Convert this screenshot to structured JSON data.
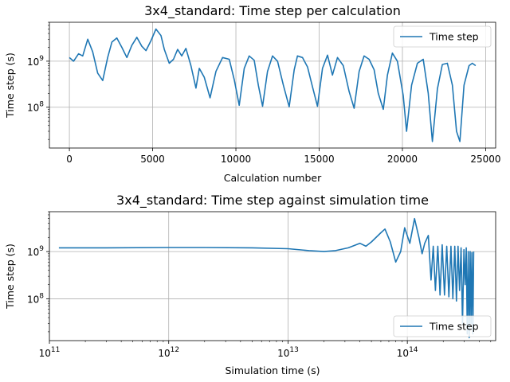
{
  "chart_data": [
    {
      "type": "line",
      "title": "3x4_standard: Time step per calculation",
      "xlabel": "Calculation number",
      "ylabel": "Time step (s)",
      "xscale": "linear",
      "yscale": "log",
      "xlim": [
        -1200,
        25600
      ],
      "ylim": [
        13000000.0,
        7000000000.0
      ],
      "xticks": [
        0,
        5000,
        10000,
        15000,
        20000,
        25000
      ],
      "xtick_labels": [
        "0",
        "5000",
        "10000",
        "15000",
        "20000",
        "25000"
      ],
      "ytick_labels": [
        {
          "base": "10",
          "exp": "8",
          "value": 100000000.0
        },
        {
          "base": "10",
          "exp": "9",
          "value": 1000000000.0
        }
      ],
      "grid": true,
      "legend": "top-right",
      "color": "#1f77b4",
      "series": [
        {
          "name": "Time step",
          "x": [
            0,
            250,
            550,
            800,
            1100,
            1400,
            1700,
            2000,
            2300,
            2550,
            2850,
            3150,
            3450,
            3750,
            4050,
            4350,
            4600,
            4900,
            5200,
            5500,
            5700,
            6000,
            6250,
            6500,
            6750,
            7000,
            7300,
            7600,
            7800,
            8100,
            8450,
            8800,
            9200,
            9600,
            9900,
            10200,
            10500,
            10800,
            11100,
            11350,
            11600,
            11900,
            12200,
            12500,
            12850,
            13200,
            13500,
            13700,
            14000,
            14300,
            14600,
            14900,
            15200,
            15500,
            15800,
            16100,
            16450,
            16800,
            17100,
            17400,
            17700,
            18000,
            18300,
            18550,
            18850,
            19100,
            19400,
            19700,
            20050,
            20250,
            20550,
            20900,
            21250,
            21550,
            21800,
            22100,
            22400,
            22700,
            23000,
            23250,
            23450,
            23700,
            24000,
            24200,
            24400
          ],
          "y": [
            1200000000.0,
            1000000000.0,
            1450000000.0,
            1300000000.0,
            3000000000.0,
            1600000000.0,
            550000000.0,
            380000000.0,
            1200000000.0,
            2600000000.0,
            3200000000.0,
            2000000000.0,
            1200000000.0,
            2200000000.0,
            3300000000.0,
            2100000000.0,
            1700000000.0,
            2800000000.0,
            5000000000.0,
            3600000000.0,
            1800000000.0,
            900000000.0,
            1100000000.0,
            1800000000.0,
            1300000000.0,
            1900000000.0,
            800000000.0,
            260000000.0,
            700000000.0,
            450000000.0,
            160000000.0,
            600000000.0,
            1200000000.0,
            1100000000.0,
            400000000.0,
            110000000.0,
            700000000.0,
            1300000000.0,
            1050000000.0,
            300000000.0,
            105000000.0,
            600000000.0,
            1300000000.0,
            1000000000.0,
            300000000.0,
            102000000.0,
            650000000.0,
            1300000000.0,
            1200000000.0,
            750000000.0,
            280000000.0,
            105000000.0,
            700000000.0,
            1350000000.0,
            500000000.0,
            1200000000.0,
            800000000.0,
            220000000.0,
            95000000.0,
            600000000.0,
            1300000000.0,
            1100000000.0,
            650000000.0,
            200000000.0,
            90000000.0,
            500000000.0,
            1500000000.0,
            1000000000.0,
            180000000.0,
            30000000.0,
            300000000.0,
            900000000.0,
            1100000000.0,
            200000000.0,
            18000000.0,
            250000000.0,
            850000000.0,
            900000000.0,
            300000000.0,
            30000000.0,
            18000000.0,
            300000000.0,
            800000000.0,
            900000000.0,
            800000000.0
          ]
        }
      ]
    },
    {
      "type": "line",
      "title": "3x4_standard: Time step against simulation time",
      "xlabel": "Simulation time (s)",
      "ylabel": "Time step (s)",
      "xscale": "log",
      "yscale": "log",
      "xlim": [
        100000000000.0,
        550000000000000.0
      ],
      "ylim": [
        13000000.0,
        7000000000.0
      ],
      "xtick_labels": [
        {
          "base": "10",
          "exp": "11",
          "value": 100000000000.0
        },
        {
          "base": "10",
          "exp": "12",
          "value": 1000000000000.0
        },
        {
          "base": "10",
          "exp": "13",
          "value": 10000000000000.0
        },
        {
          "base": "10",
          "exp": "14",
          "value": 100000000000000.0
        }
      ],
      "ytick_labels": [
        {
          "base": "10",
          "exp": "8",
          "value": 100000000.0
        },
        {
          "base": "10",
          "exp": "9",
          "value": 1000000000.0
        }
      ],
      "grid": true,
      "legend": "bottom-right",
      "color": "#1f77b4",
      "series": [
        {
          "name": "Time step",
          "x": [
            120000000000.0,
            300000000000.0,
            1000000000000.0,
            2000000000000.0,
            5000000000000.0,
            10000000000000.0,
            15000000000000.0,
            20000000000000.0,
            25000000000000.0,
            32000000000000.0,
            40000000000000.0,
            45000000000000.0,
            50000000000000.0,
            60000000000000.0,
            65000000000000.0,
            72000000000000.0,
            80000000000000.0,
            88000000000000.0,
            95000000000000.0,
            105000000000000.0,
            115000000000000.0,
            125000000000000.0,
            133000000000000.0,
            140000000000000.0,
            150000000000000.0,
            158000000000000.0,
            165000000000000.0,
            172000000000000.0,
            180000000000000.0,
            188000000000000.0,
            196000000000000.0,
            205000000000000.0,
            214000000000000.0,
            223000000000000.0,
            232000000000000.0,
            241000000000000.0,
            250000000000000.0,
            258000000000000.0,
            266000000000000.0,
            274000000000000.0,
            282000000000000.0,
            290000000000000.0,
            298000000000000.0,
            305000000000000.0,
            312000000000000.0,
            318000000000000.0,
            324000000000000.0,
            330000000000000.0,
            336000000000000.0,
            342000000000000.0,
            348000000000000.0,
            354000000000000.0,
            360000000000000.0
          ],
          "y": [
            1200000000.0,
            1200000000.0,
            1220000000.0,
            1220000000.0,
            1200000000.0,
            1150000000.0,
            1050000000.0,
            1000000000.0,
            1050000000.0,
            1200000000.0,
            1500000000.0,
            1300000000.0,
            1600000000.0,
            2500000000.0,
            3000000000.0,
            1600000000.0,
            600000000.0,
            1000000000.0,
            3200000000.0,
            1500000000.0,
            5000000000.0,
            2000000000.0,
            900000000.0,
            1500000000.0,
            2200000000.0,
            250000000.0,
            1300000000.0,
            150000000.0,
            1300000000.0,
            120000000.0,
            1400000000.0,
            120000000.0,
            1300000000.0,
            110000000.0,
            1300000000.0,
            100000000.0,
            1300000000.0,
            90000000.0,
            1300000000.0,
            150000000.0,
            1200000000.0,
            30000000.0,
            1100000000.0,
            200000000.0,
            1200000000.0,
            18000000.0,
            1000000000.0,
            15000000.0,
            1000000000.0,
            30000000.0,
            950000000.0,
            18000000.0,
            1000000000.0
          ]
        }
      ]
    }
  ]
}
